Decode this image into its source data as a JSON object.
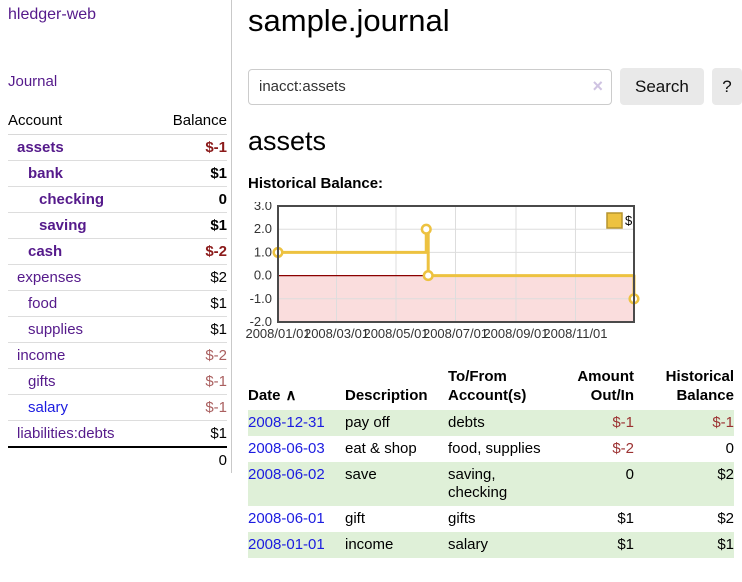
{
  "app": {
    "title": "hledger-web"
  },
  "colors": {
    "link_purple": "#551a8b",
    "link_blue": "#1c1ce0",
    "negative_strong": "#8b1a1a",
    "negative_soft": "#aa5f5f",
    "negative_register": "#9c3232",
    "row_stripe_green": "#dff0d8",
    "chart_series_gold": "#edc240",
    "chart_negative_region": "#fadddd",
    "chart_zero_line": "#8b0000"
  },
  "sidebar": {
    "journal_link": "Journal",
    "account_header": "Account",
    "balance_header": "Balance",
    "accounts": [
      {
        "name": "assets",
        "balance": "$-1",
        "depth": 1,
        "bold": true,
        "neg": "strong",
        "blue": false
      },
      {
        "name": "bank",
        "balance": "$1",
        "depth": 2,
        "bold": true,
        "neg": null,
        "blue": false
      },
      {
        "name": "checking",
        "balance": "0",
        "depth": 3,
        "bold": true,
        "neg": null,
        "blue": false
      },
      {
        "name": "saving",
        "balance": "$1",
        "depth": 3,
        "bold": true,
        "neg": null,
        "blue": false
      },
      {
        "name": "cash",
        "balance": "$-2",
        "depth": 2,
        "bold": true,
        "neg": "strong",
        "blue": false
      },
      {
        "name": "expenses",
        "balance": "$2",
        "depth": 1,
        "bold": false,
        "neg": null,
        "blue": false
      },
      {
        "name": "food",
        "balance": "$1",
        "depth": 2,
        "bold": false,
        "neg": null,
        "blue": false
      },
      {
        "name": "supplies",
        "balance": "$1",
        "depth": 2,
        "bold": false,
        "neg": null,
        "blue": false
      },
      {
        "name": "income",
        "balance": "$-2",
        "depth": 1,
        "bold": false,
        "neg": "soft",
        "blue": false
      },
      {
        "name": "gifts",
        "balance": "$-1",
        "depth": 2,
        "bold": false,
        "neg": "soft",
        "blue": false
      },
      {
        "name": "salary",
        "balance": "$-1",
        "depth": 2,
        "bold": false,
        "neg": "soft",
        "blue": true
      },
      {
        "name": "liabilities:debts",
        "balance": "$1",
        "depth": 1,
        "bold": false,
        "neg": null,
        "blue": false
      }
    ],
    "total": "0"
  },
  "main": {
    "title": "sample.journal",
    "search": {
      "value": "inacct:assets",
      "clear_icon": "×",
      "button_label": "Search",
      "help_label": "?"
    },
    "account_heading": "assets",
    "chart_label": "Historical Balance:"
  },
  "chart_data": {
    "type": "line",
    "title": "Historical Balance",
    "step": true,
    "series": [
      {
        "name": "$",
        "color": "#edc240",
        "points": [
          {
            "date": "2008-01-01",
            "day": 0,
            "value": 1
          },
          {
            "date": "2008-06-01",
            "day": 152,
            "value": 2
          },
          {
            "date": "2008-06-03",
            "day": 154,
            "value": 0
          },
          {
            "date": "2008-12-31",
            "day": 365,
            "value": -1
          }
        ]
      }
    ],
    "x_ticks": [
      {
        "label": "2008/01/01",
        "day": 0
      },
      {
        "label": "2008/03/01",
        "day": 60
      },
      {
        "label": "2008/05/01",
        "day": 121
      },
      {
        "label": "2008/07/01",
        "day": 182
      },
      {
        "label": "2008/09/01",
        "day": 244
      },
      {
        "label": "2008/11/01",
        "day": 305
      }
    ],
    "y_ticks": [
      3.0,
      2.0,
      1.0,
      0.0,
      -1.0,
      -2.0
    ],
    "x_range": [
      0,
      365
    ],
    "y_range": [
      -2,
      3
    ],
    "grid": true,
    "legend_position": "top-right",
    "negative_region_color": "#fadddd",
    "zero_line_color": "#8b0000"
  },
  "register": {
    "sort_icon": "∧",
    "headers": {
      "date": "Date",
      "description": "Description",
      "tofrom": "To/From Account(s)",
      "amount": "Amount Out/In",
      "balance": "Historical Balance"
    },
    "rows": [
      {
        "date": "2008-12-31",
        "description": "pay off",
        "tofrom": "debts",
        "amount": "$-1",
        "amount_neg": true,
        "balance": "$-1",
        "balance_neg": true,
        "striped": true
      },
      {
        "date": "2008-06-03",
        "description": "eat & shop",
        "tofrom": "food, supplies",
        "amount": "$-2",
        "amount_neg": true,
        "balance": "0",
        "balance_neg": false,
        "striped": false
      },
      {
        "date": "2008-06-02",
        "description": "save",
        "tofrom": "saving, checking",
        "amount": "0",
        "amount_neg": false,
        "balance": "$2",
        "balance_neg": false,
        "striped": true
      },
      {
        "date": "2008-06-01",
        "description": "gift",
        "tofrom": "gifts",
        "amount": "$1",
        "amount_neg": false,
        "balance": "$2",
        "balance_neg": false,
        "striped": false
      },
      {
        "date": "2008-01-01",
        "description": "income",
        "tofrom": "salary",
        "amount": "$1",
        "amount_neg": false,
        "balance": "$1",
        "balance_neg": false,
        "striped": true
      }
    ]
  }
}
